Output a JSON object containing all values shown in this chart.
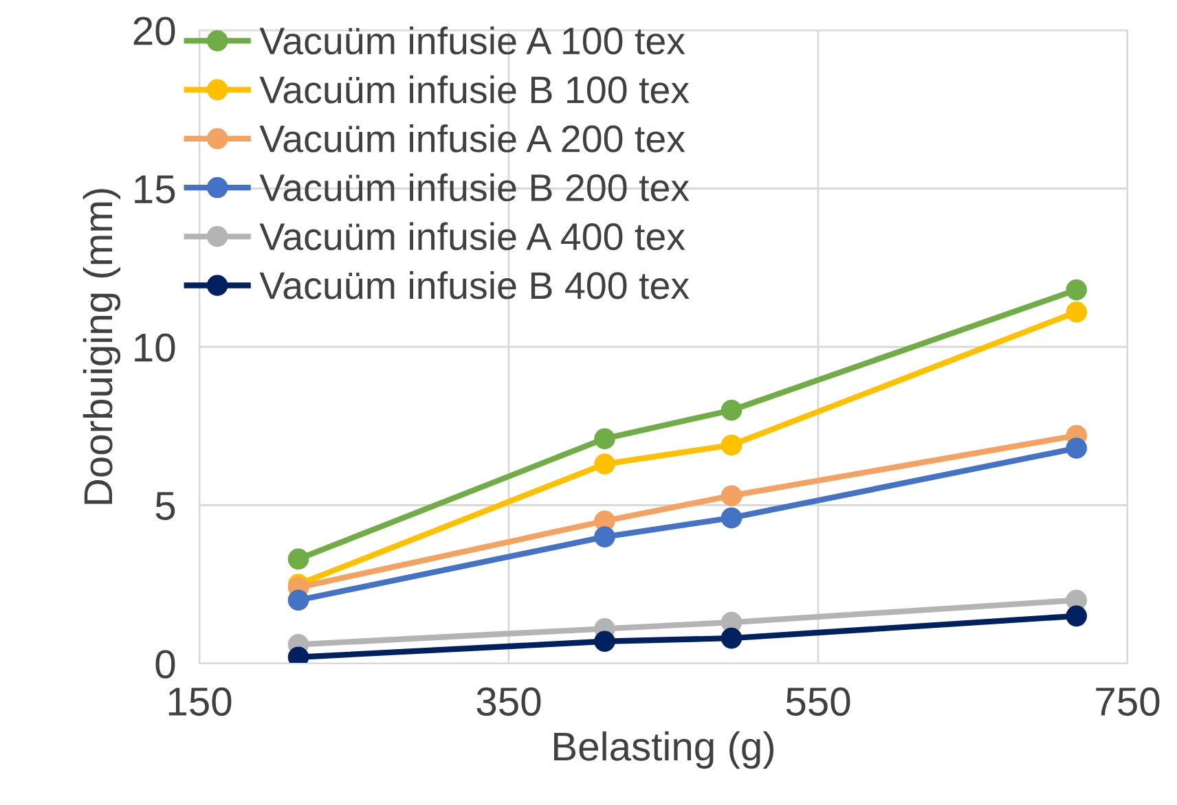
{
  "chart_data": {
    "type": "line",
    "xlabel": "Belasting (g)",
    "ylabel": "Doorbuiging (mm)",
    "x": [
      214,
      412,
      494,
      717
    ],
    "xlim": [
      150,
      750
    ],
    "xticks": [
      150,
      350,
      550,
      750
    ],
    "ylim": [
      0,
      20
    ],
    "yticks": [
      0,
      5,
      10,
      15,
      20
    ],
    "grid": true,
    "legend": "top left",
    "marker": "circle",
    "line_style": "solid",
    "series": [
      {
        "name": "Vacuüm infusie A 100 tex",
        "color": "#70ad47",
        "values": [
          3.3,
          7.1,
          8.0,
          11.8
        ]
      },
      {
        "name": "Vacuüm infusie B 100 tex",
        "color": "#ffc000",
        "values": [
          2.5,
          6.3,
          6.9,
          11.1
        ]
      },
      {
        "name": "Vacuüm infusie A 200 tex",
        "color": "#f4a261",
        "values": [
          2.4,
          4.5,
          5.3,
          7.2
        ]
      },
      {
        "name": "Vacuüm infusie B 200 tex",
        "color": "#4472c4",
        "values": [
          2.0,
          4.0,
          4.6,
          6.8
        ]
      },
      {
        "name": "Vacuüm infusie A 400 tex",
        "color": "#b4b4b4",
        "values": [
          0.6,
          1.1,
          1.3,
          2.0
        ]
      },
      {
        "name": "Vacuüm infusie B 400 tex",
        "color": "#002060",
        "values": [
          0.2,
          0.7,
          0.8,
          1.5
        ]
      }
    ]
  }
}
